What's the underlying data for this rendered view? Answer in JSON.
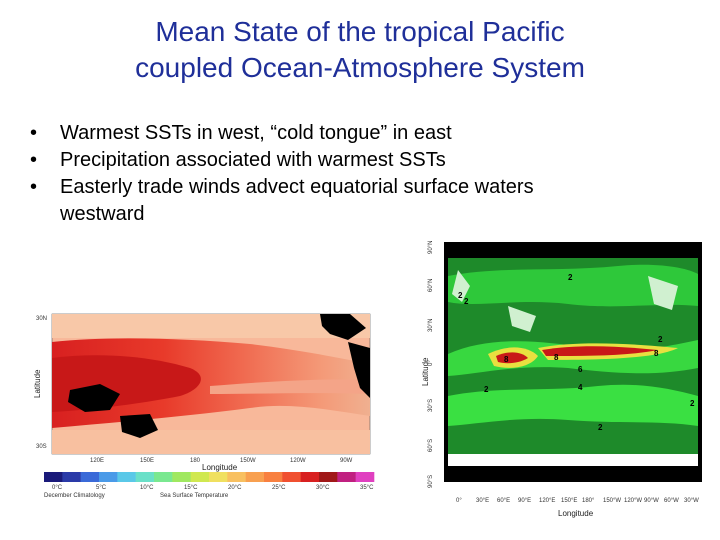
{
  "slide": {
    "title_line1": "Mean State of the tropical Pacific",
    "title_line2": "coupled Ocean-Atmosphere System",
    "bullets": [
      "Warmest SSTs in west, “cold tongue” in east",
      "Precipitation associated with warmest SSTs",
      "Easterly trade winds advect equatorial surface waters westward"
    ],
    "bullet_symbol": "•",
    "title_color": "#1f2f99"
  },
  "sst_map": {
    "lat_ticks": [
      "30N",
      "30S"
    ],
    "y_axis_label": "Latitude",
    "lon_ticks": [
      "120E",
      "150E",
      "180",
      "150W",
      "120W",
      "90W"
    ],
    "x_axis_label": "Longitude",
    "colorbar_ticks": [
      "0°C",
      "5°C",
      "10°C",
      "15°C",
      "20°C",
      "25°C",
      "30°C",
      "35°C"
    ],
    "caption_left": "December Climatology",
    "caption_center": "Sea Surface Temperature",
    "colorbar_colors": [
      "#1a1a7a",
      "#2a3aa8",
      "#3a6ad8",
      "#4a9ae8",
      "#5ac8e8",
      "#6ae0c8",
      "#7ae890",
      "#a0e860",
      "#d0e850",
      "#f0e060",
      "#f8c060",
      "#f8a050",
      "#f88040",
      "#f05030",
      "#d82020",
      "#a01818",
      "#c02080",
      "#e040c0"
    ]
  },
  "precip_map": {
    "lat_ticks": [
      "90°N",
      "60°N",
      "30°N",
      "0°",
      "30°S",
      "60°S",
      "90°S"
    ],
    "lon_ticks": [
      "0°",
      "30°E",
      "60°E",
      "90°E",
      "120°E",
      "150°E",
      "180°",
      "150°W",
      "120°W",
      "90°W",
      "60°W",
      "30°W"
    ],
    "x_axis_label": "Longitude",
    "y_axis_label": "Latitude",
    "contour_labels": [
      "2",
      "2",
      "8",
      "8",
      "6",
      "4",
      "2",
      "2",
      "8",
      "2",
      "2",
      "2"
    ]
  }
}
